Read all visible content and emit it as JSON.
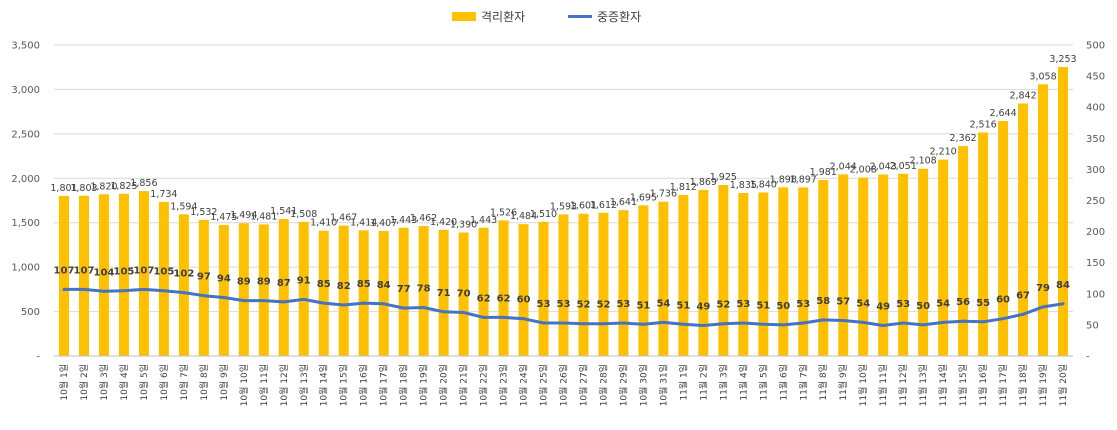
{
  "chart_data": {
    "type": "bar+line",
    "title": "",
    "categories": [
      "10월 1일",
      "10월 2일",
      "10월 3일",
      "10월 4일",
      "10월 5일",
      "10월 6일",
      "10월 7일",
      "10월 8일",
      "10월 9일",
      "10월 10일",
      "10월 11일",
      "10월 12일",
      "10월 13일",
      "10월 14일",
      "10월 15일",
      "10월 16일",
      "10월 17일",
      "10월 18일",
      "10월 19일",
      "10월 20일",
      "10월 21일",
      "10월 22일",
      "10월 23일",
      "10월 24일",
      "10월 25일",
      "10월 26일",
      "10월 27일",
      "10월 28일",
      "10월 29일",
      "10월 30일",
      "10월 31일",
      "11월 1일",
      "11월 2일",
      "11월 3일",
      "11월 4일",
      "11월 5일",
      "11월 6일",
      "11월 7일",
      "11월 8일",
      "11월 9일",
      "11월 10일",
      "11월 11일",
      "11월 12일",
      "11월 13일",
      "11월 14일",
      "11월 15일",
      "11월 16일",
      "11월 17일",
      "11월 18일",
      "11월 19일",
      "11월 20일"
    ],
    "series": [
      {
        "name": "격리환자",
        "type": "bar",
        "axis": "left",
        "color": "#FFC000",
        "values": [
          1801,
          1803,
          1820,
          1825,
          1856,
          1734,
          1594,
          1532,
          1475,
          1494,
          1481,
          1541,
          1508,
          1410,
          1467,
          1414,
          1407,
          1443,
          1462,
          1420,
          1390,
          1443,
          1526,
          1484,
          1510,
          1593,
          1601,
          1612,
          1641,
          1695,
          1736,
          1812,
          1869,
          1925,
          1835,
          1840,
          1898,
          1897,
          1981,
          2044,
          2008,
          2043,
          2051,
          2108,
          2210,
          2362,
          2516,
          2644,
          2842,
          3058,
          3253
        ],
        "labels": [
          "1,801",
          "1,803",
          "1,820",
          "1,825",
          "1,856",
          "1,734",
          "1,594",
          "1,532",
          "1,475",
          "1,494",
          "1,481",
          "1,541",
          "1,508",
          "1,410",
          "1,467",
          "1,414",
          "1,407",
          "1,443",
          "1,462",
          "1,420",
          "1,390",
          "1,443",
          "1,526",
          "1,484",
          "1,510",
          "1,593",
          "1,601",
          "1,612",
          "1,641",
          "1,695",
          "1,736",
          "1,812",
          "1,869",
          "1,925",
          "1,835",
          "1,840",
          "1,898",
          "1,897",
          "1,981",
          "2,044",
          "2,008",
          "2,043",
          "2,051",
          "2,108",
          "2,210",
          "2,362",
          "2,516",
          "2,644",
          "2,842",
          "3,058",
          "3,253"
        ]
      },
      {
        "name": "중증환자",
        "type": "line",
        "axis": "right",
        "color": "#4472C4",
        "values": [
          107,
          107,
          104,
          105,
          107,
          105,
          102,
          97,
          94,
          89,
          89,
          87,
          91,
          85,
          82,
          85,
          84,
          77,
          78,
          71,
          70,
          62,
          62,
          60,
          53,
          53,
          52,
          52,
          53,
          51,
          54,
          51,
          49,
          52,
          53,
          51,
          50,
          53,
          58,
          57,
          54,
          49,
          53,
          50,
          54,
          56,
          55,
          60,
          67,
          79,
          84
        ],
        "labels": [
          "107",
          "107",
          "104",
          "105",
          "107",
          "105",
          "102",
          "97",
          "94",
          "89",
          "89",
          "87",
          "91",
          "85",
          "82",
          "85",
          "84",
          "77",
          "78",
          "71",
          "70",
          "62",
          "62",
          "60",
          "53",
          "53",
          "52",
          "52",
          "53",
          "51",
          "54",
          "51",
          "49",
          "52",
          "53",
          "51",
          "50",
          "53",
          "58",
          "57",
          "54",
          "49",
          "53",
          "50",
          "54",
          "56",
          "55",
          "60",
          "67",
          "79",
          "84"
        ]
      }
    ],
    "y_left": {
      "min": 0,
      "max": 3500,
      "step": 500,
      "tick_labels": [
        "-",
        "500",
        "1,000",
        "1,500",
        "2,000",
        "2,500",
        "3,000",
        "3,500"
      ]
    },
    "y_right": {
      "min": 0,
      "max": 500,
      "step": 50,
      "tick_labels": [
        "-",
        "50",
        "100",
        "150",
        "200",
        "250",
        "300",
        "350",
        "400",
        "450",
        "500"
      ]
    },
    "grid": true,
    "legend_position": "top-center"
  }
}
